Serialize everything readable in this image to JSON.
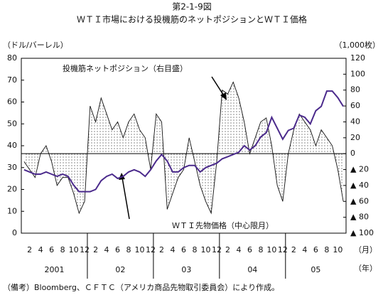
{
  "chart_data": {
    "type": "line",
    "title": "第2-1-9図",
    "subtitle": "ＷＴＩ市場における投機筋のネットポジションとＷＴＩ価格",
    "y_label": "（ドル/バーレル）",
    "y2_label": "（1,000枚）",
    "x_unit": "（月）",
    "group_unit": "（年）",
    "note": "（備考）Bloomberg、ＣＦＴＣ（アメリカ商品先物取引委員会）により作成。",
    "annotations": [
      "投機筋ネットポジション（右目盛）",
      "ＷＴＩ先物価格（中心限月）"
    ],
    "categories": [
      null,
      "2",
      null,
      "4",
      null,
      "6",
      null,
      "8",
      null,
      "10",
      null,
      "12",
      null,
      "2",
      null,
      "4",
      null,
      "6",
      null,
      "8",
      null,
      "10",
      null,
      "12",
      null,
      "2",
      null,
      "4",
      null,
      "6",
      null,
      "8",
      null,
      "10",
      null,
      "12",
      null,
      "2",
      null,
      "4",
      null,
      "6",
      null,
      "8",
      null,
      "10",
      null,
      "12",
      null,
      "2",
      null,
      "4",
      null,
      "6",
      null,
      "8",
      null,
      "10",
      null
    ],
    "x_groups": [
      "2001",
      "02",
      "03",
      "04",
      "05"
    ],
    "series": [
      {
        "name": "投機筋ネットポジション（右目盛）",
        "color": "#111111",
        "axis": "y2",
        "fill": "dots",
        "values": [
          -10,
          -20,
          -30,
          0,
          10,
          -10,
          -40,
          -30,
          -30,
          -50,
          -75,
          -60,
          60,
          40,
          70,
          50,
          30,
          40,
          20,
          40,
          50,
          30,
          20,
          -20,
          50,
          40,
          -70,
          -50,
          -30,
          -20,
          20,
          -10,
          -40,
          -60,
          -75,
          -10,
          80,
          75,
          90,
          70,
          40,
          0,
          20,
          40,
          45,
          10,
          -40,
          -60,
          0,
          30,
          50,
          40,
          30,
          10,
          30,
          20,
          10,
          -20,
          -60
        ]
      },
      {
        "name": "ＷＴＩ先物価格（中心限月）",
        "color": "#4b2a8c",
        "values": [
          29,
          28,
          27,
          27,
          28,
          27,
          26,
          27,
          26,
          22,
          19,
          19,
          19,
          20,
          24,
          26,
          27,
          25,
          26,
          28,
          29,
          28,
          26,
          29,
          33,
          36,
          33,
          28,
          28,
          30,
          31,
          31,
          28,
          30,
          31,
          32,
          34,
          35,
          36,
          37,
          40,
          38,
          40,
          44,
          46,
          53,
          48,
          43,
          47,
          48,
          54,
          53,
          50,
          56,
          58,
          65,
          65,
          62,
          58
        ]
      }
    ],
    "ylim": [
      0,
      80
    ],
    "yticks": [
      0,
      10,
      20,
      30,
      40,
      50,
      60,
      70,
      80
    ],
    "y2lim": [
      -100,
      120
    ],
    "y2ticks": [
      120,
      100,
      80,
      60,
      40,
      20,
      0,
      {
        "value": -20,
        "label": "▲ 20"
      },
      {
        "value": -40,
        "label": "▲ 40"
      },
      {
        "value": -60,
        "label": "▲ 60"
      },
      {
        "value": -80,
        "label": "▲ 80"
      },
      {
        "value": -100,
        "label": "▲ 100"
      }
    ]
  }
}
